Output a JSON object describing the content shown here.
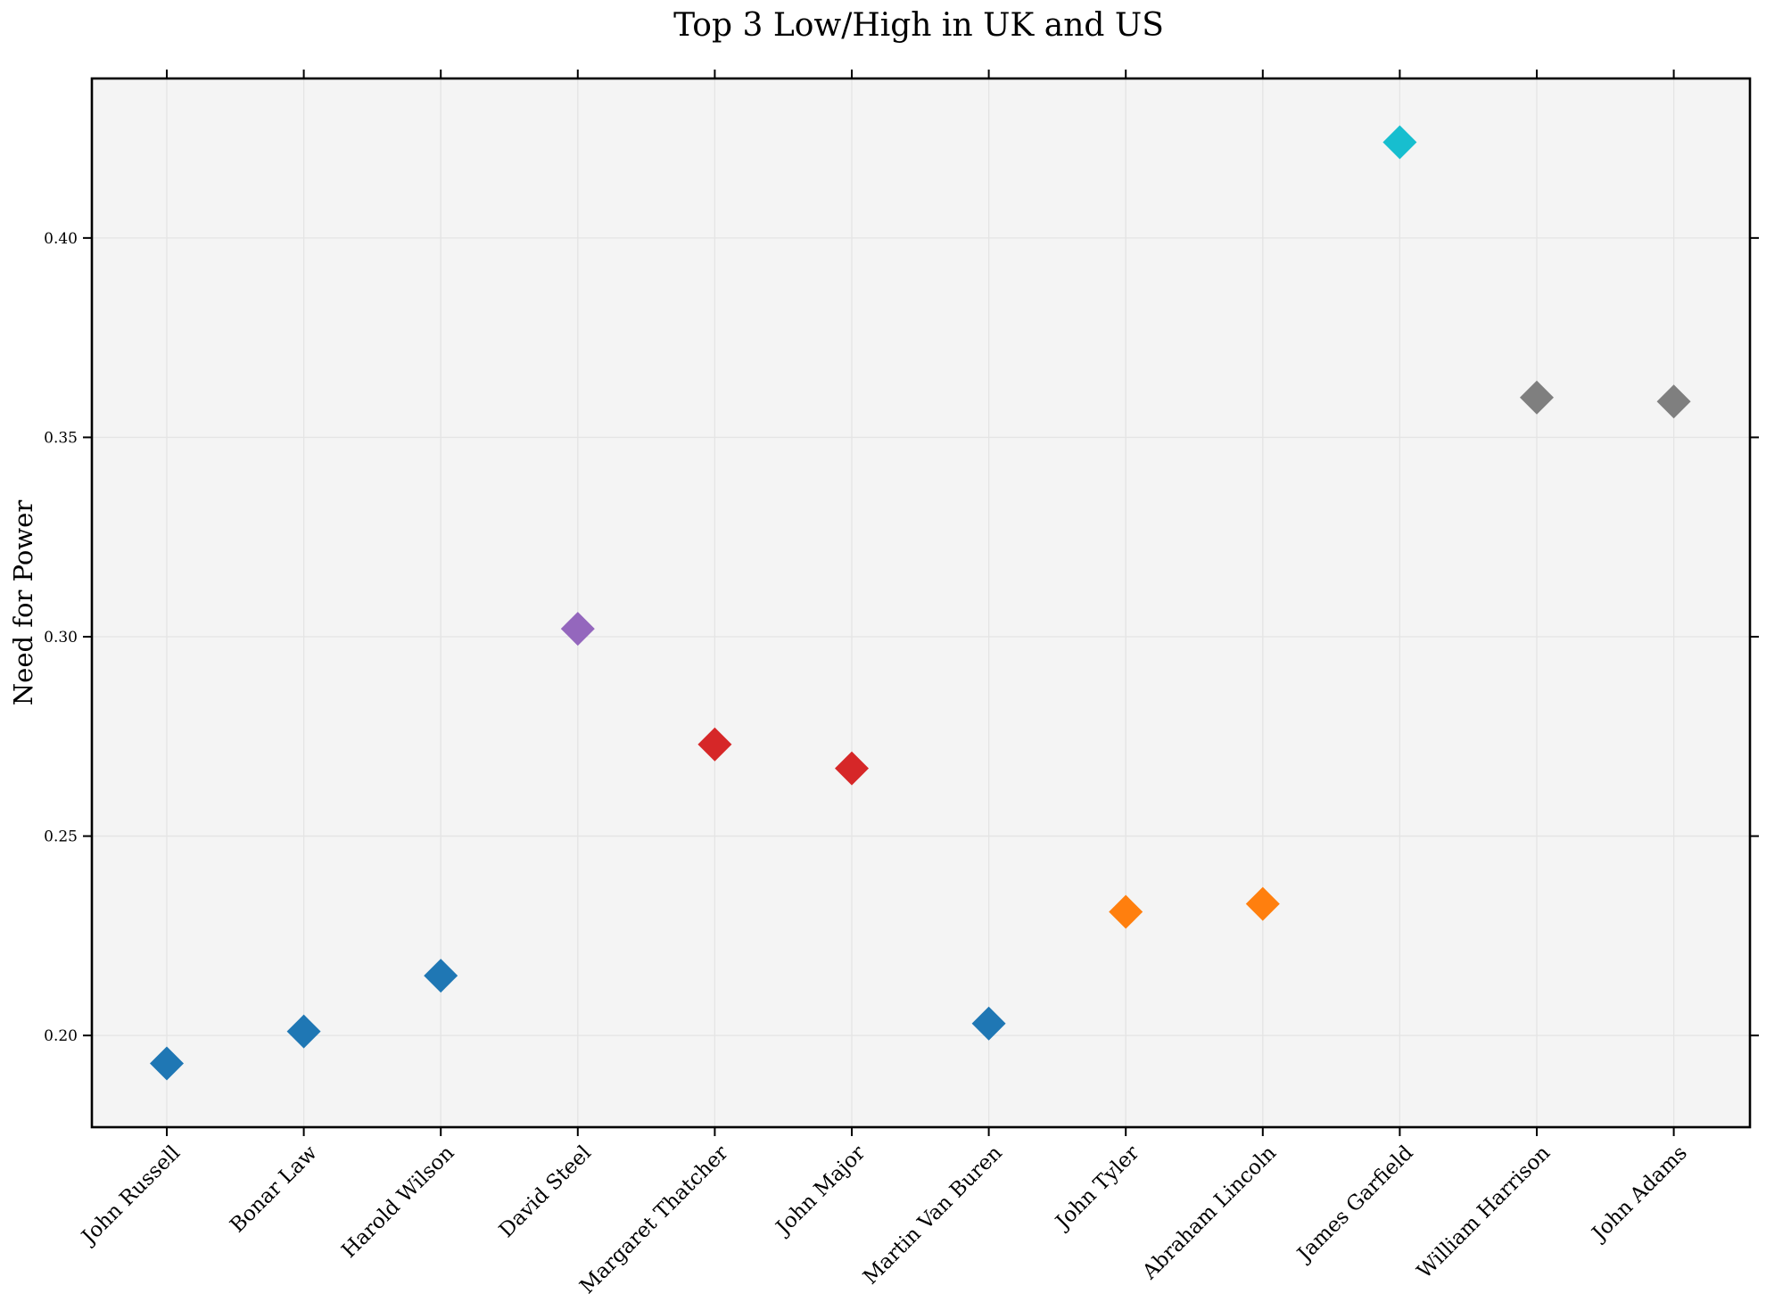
{
  "chart_data": {
    "type": "scatter",
    "title": "Top 3 Low/High in UK and US",
    "xlabel": "",
    "ylabel": "Need for Power",
    "ylim": [
      0.177,
      0.44
    ],
    "y_ticks": [
      "0.20",
      "0.25",
      "0.30",
      "0.35",
      "0.40"
    ],
    "y_tick_values": [
      0.2,
      0.25,
      0.3,
      0.35,
      0.4
    ],
    "grid": true,
    "marker": "diamond",
    "categories": [
      "John Russell",
      "Bonar Law",
      "Harold Wilson",
      "David Steel",
      "Margaret Thatcher",
      "John Major",
      "Martin Van Buren",
      "John Tyler",
      "Abraham Lincoln",
      "James Garfield",
      "William Harrison",
      "John Adams"
    ],
    "values": [
      0.193,
      0.201,
      0.215,
      0.302,
      0.273,
      0.267,
      0.203,
      0.231,
      0.233,
      0.424,
      0.36,
      0.359
    ],
    "colors": [
      "#1f77b4",
      "#1f77b4",
      "#1f77b4",
      "#9467bd",
      "#d62728",
      "#d62728",
      "#1f77b4",
      "#ff7f0e",
      "#ff7f0e",
      "#17becf",
      "#7f7f7f",
      "#7f7f7f"
    ]
  }
}
